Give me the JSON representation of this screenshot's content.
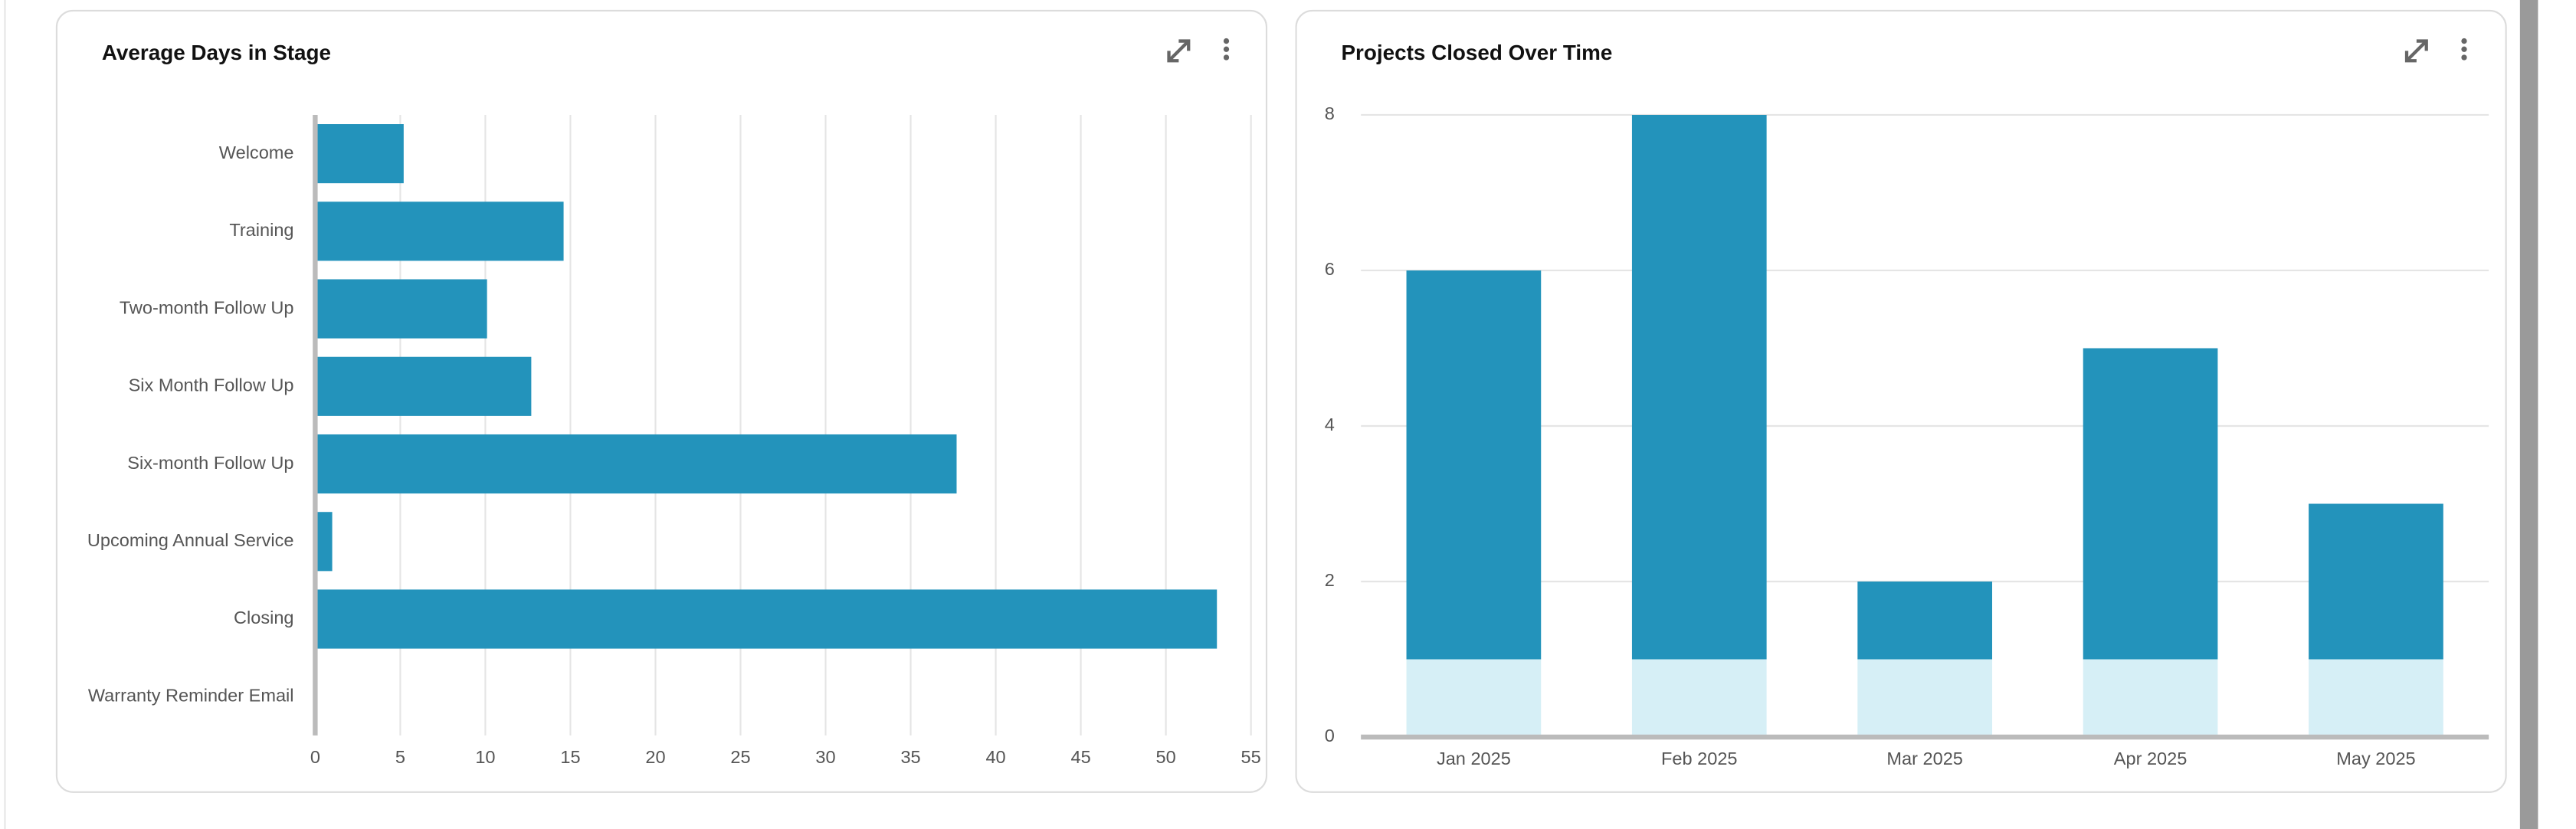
{
  "chart_data": [
    {
      "type": "bar",
      "orientation": "horizontal",
      "title": "Average Days in Stage",
      "categories": [
        "Welcome",
        "Training",
        "Two-month Follow Up",
        "Six Month Follow Up",
        "Six-month Follow Up",
        "Upcoming Annual Service",
        "Closing",
        "Warranty Reminder Email"
      ],
      "values": [
        5.2,
        14.6,
        10.1,
        12.7,
        37.7,
        1,
        53,
        0
      ],
      "color": "#2393bb",
      "xlim": [
        0,
        55
      ],
      "xticks": [
        0,
        5,
        10,
        15,
        20,
        25,
        30,
        35,
        40,
        45,
        50,
        55
      ],
      "grid": true
    },
    {
      "type": "bar",
      "stacked": true,
      "title": "Projects Closed Over Time",
      "categories": [
        "Jan 2025",
        "Feb 2025",
        "Mar 2025",
        "Apr 2025",
        "May 2025"
      ],
      "series": [
        {
          "color": "#d6eff6",
          "values": [
            1,
            1,
            1,
            1,
            1
          ]
        },
        {
          "color": "#2393bb",
          "values": [
            5,
            7,
            1,
            4,
            2
          ]
        }
      ],
      "ylim": [
        0,
        8
      ],
      "yticks": [
        0,
        2,
        4,
        6,
        8
      ],
      "grid": true
    }
  ]
}
